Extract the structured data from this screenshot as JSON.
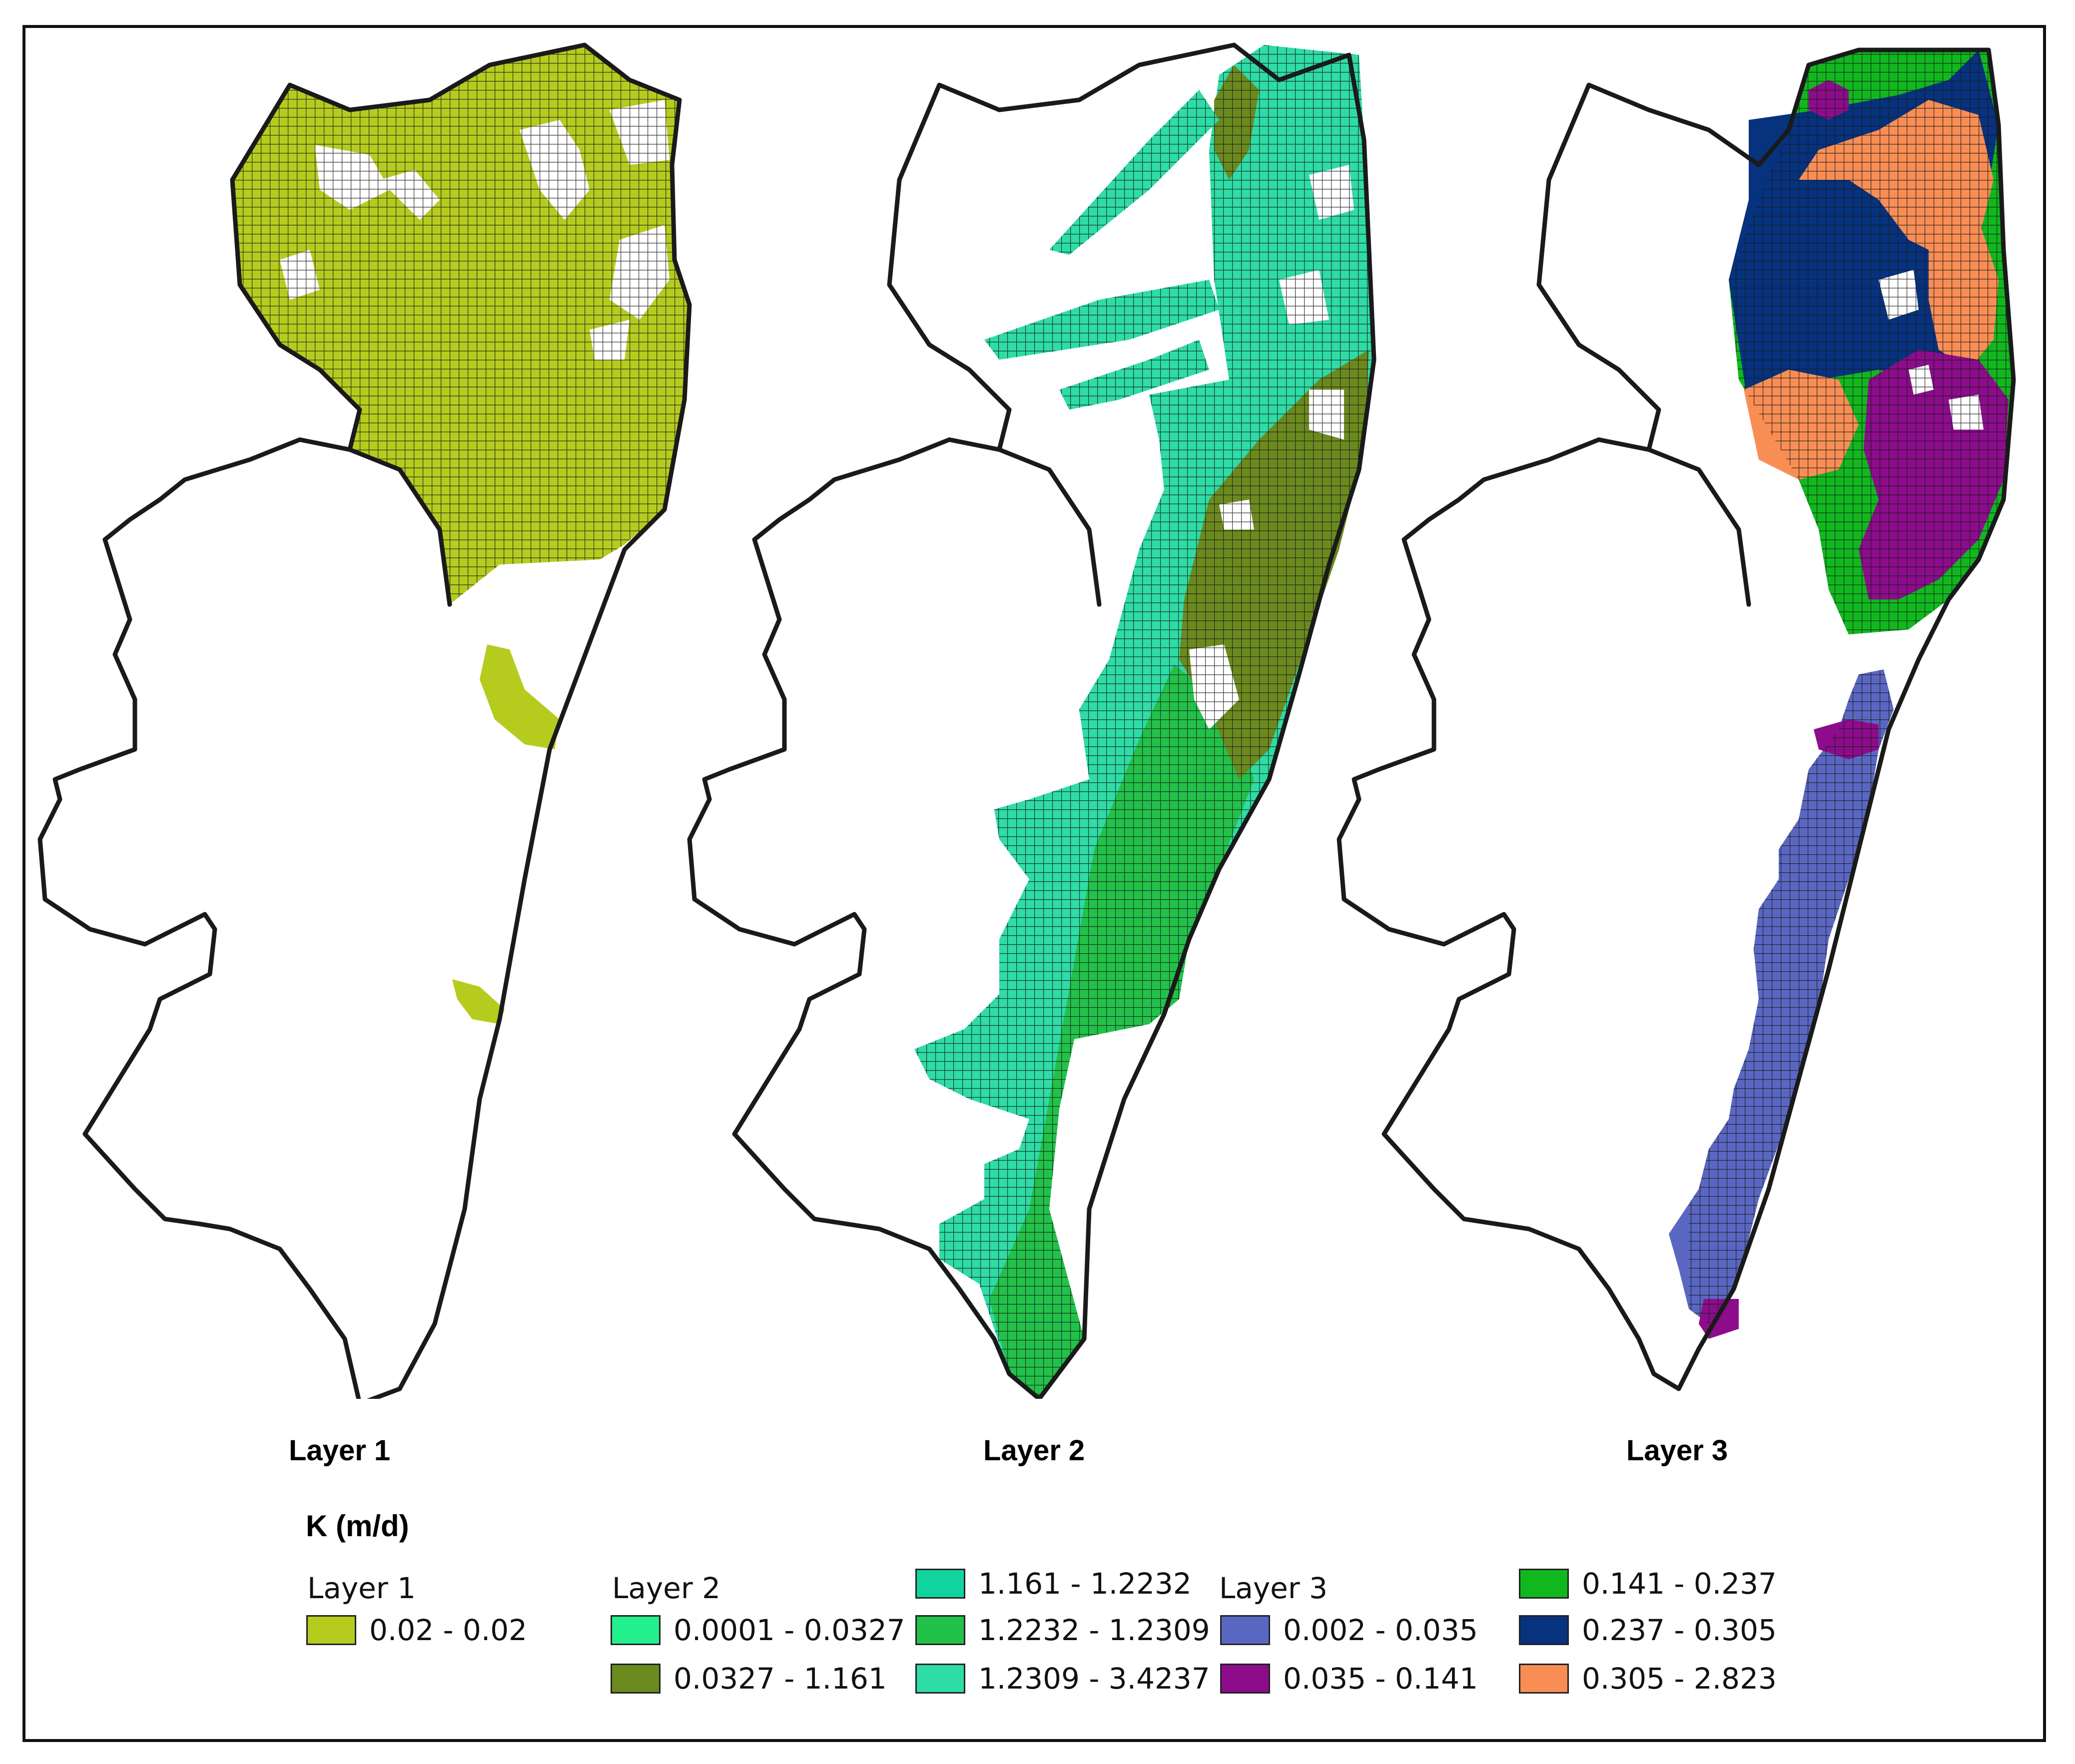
{
  "panels": [
    {
      "title": "Layer 1"
    },
    {
      "title": "Layer 2"
    },
    {
      "title": "Layer 3"
    }
  ],
  "legend": {
    "title": "K (m/d)",
    "groups": [
      {
        "title": "Layer 1",
        "items": [
          {
            "label": "0.02 - 0.02",
            "color": "#b5cc1f"
          }
        ]
      },
      {
        "title": "Layer 2",
        "items": [
          {
            "label": "0.0001 - 0.0327",
            "color": "#22f08c"
          },
          {
            "label": "0.0327 - 1.161",
            "color": "#6b8a1e"
          },
          {
            "label": "1.161 - 1.2232",
            "color": "#10d4a0"
          },
          {
            "label": "1.2232 - 1.2309",
            "color": "#22c24a"
          },
          {
            "label": "1.2309 - 3.4237",
            "color": "#2edca6"
          }
        ]
      },
      {
        "title": "Layer 3",
        "items": [
          {
            "label": "0.002 - 0.035",
            "color": "#5a67c2"
          },
          {
            "label": "0.035 - 0.141",
            "color": "#8c0c8c"
          },
          {
            "label": "0.141 - 0.237",
            "color": "#10b81e"
          },
          {
            "label": "0.237 - 0.305",
            "color": "#06327e"
          },
          {
            "label": "0.305 - 2.823",
            "color": "#f98e55"
          }
        ]
      }
    ]
  }
}
